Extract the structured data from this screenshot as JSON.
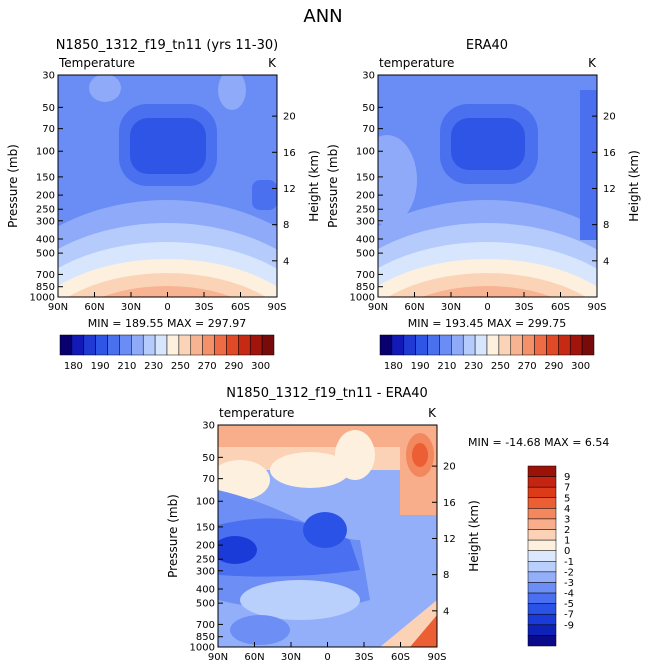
{
  "figure_title": "ANN",
  "colors": {
    "abs_levels": [
      "#08006e",
      "#1219b7",
      "#1f3ad3",
      "#2f55e6",
      "#4a70f0",
      "#6a8cf5",
      "#8eaaf8",
      "#b4cbfb",
      "#d8e6fd",
      "#fdf0df",
      "#fbd4b8",
      "#f8b392",
      "#f4906a",
      "#ee6c45",
      "#e04a26",
      "#c52a14",
      "#a0140c",
      "#780a0a"
    ],
    "diff_levels": [
      "#0a0a8a",
      "#0f22b8",
      "#1a3bd8",
      "#2a52e6",
      "#4a6ff0",
      "#6d8ff5",
      "#94aff9",
      "#b9cffc",
      "#dce8fe",
      "#fdf0df",
      "#fbd2b6",
      "#f8ae8a",
      "#f3875d",
      "#ec5e33",
      "#dd3a17",
      "#c42410",
      "#9c1208"
    ]
  },
  "chart_data": [
    {
      "type": "heatmap",
      "title": "N1850_1312_f19_tn11 (yrs 11-30)",
      "left_label": "Temperature",
      "right_label": "K",
      "xlabel": "",
      "ylabel": "Pressure (mb)",
      "y2label": "Height (km)",
      "x_ticks": [
        "90N",
        "60N",
        "30N",
        "0",
        "30S",
        "60S",
        "90S"
      ],
      "y_ticks": [
        30,
        50,
        70,
        100,
        150,
        200,
        250,
        300,
        400,
        500,
        700,
        850,
        1000
      ],
      "y2_ticks": [
        20,
        16,
        12,
        8,
        4
      ],
      "ylim": [
        30,
        1000
      ],
      "stats": {
        "min_label": "MIN =",
        "min": "189.55",
        "max_label": "MAX =",
        "max": "297.97"
      }
    },
    {
      "type": "heatmap",
      "title": "ERA40",
      "left_label": "temperature",
      "right_label": "K",
      "xlabel": "",
      "ylabel": "Pressure (mb)",
      "y2label": "Height (km)",
      "x_ticks": [
        "90N",
        "60N",
        "30N",
        "0",
        "30S",
        "60S",
        "90S"
      ],
      "y_ticks": [
        30,
        50,
        70,
        100,
        150,
        200,
        250,
        300,
        400,
        500,
        700,
        850,
        1000
      ],
      "y2_ticks": [
        20,
        16,
        12,
        8,
        4
      ],
      "ylim": [
        30,
        1000
      ],
      "stats": {
        "min_label": "MIN =",
        "min": "193.45",
        "max_label": "MAX =",
        "max": "299.75"
      }
    },
    {
      "type": "heatmap",
      "title": "N1850_1312_f19_tn11 - ERA40",
      "left_label": "temperature",
      "right_label": "K",
      "xlabel": "",
      "ylabel": "Pressure (mb)",
      "y2label": "Height (km)",
      "x_ticks": [
        "90N",
        "60N",
        "30N",
        "0",
        "30S",
        "60S",
        "90S"
      ],
      "y_ticks": [
        30,
        50,
        70,
        100,
        150,
        200,
        250,
        300,
        400,
        500,
        700,
        850,
        1000
      ],
      "y2_ticks": [
        20,
        16,
        12,
        8,
        4
      ],
      "ylim": [
        30,
        1000
      ],
      "stats": {
        "min_label": "MIN =",
        "min": "-14.68",
        "max_label": "MAX =",
        "max": "6.54"
      }
    }
  ],
  "colorbars": {
    "absolute": {
      "labels": [
        "180",
        "190",
        "210",
        "230",
        "250",
        "270",
        "290",
        "300"
      ]
    },
    "difference": {
      "labels": [
        "9",
        "7",
        "5",
        "4",
        "3",
        "2",
        "1",
        "0",
        "-1",
        "-2",
        "-3",
        "-4",
        "-5",
        "-7",
        "-9"
      ]
    }
  }
}
